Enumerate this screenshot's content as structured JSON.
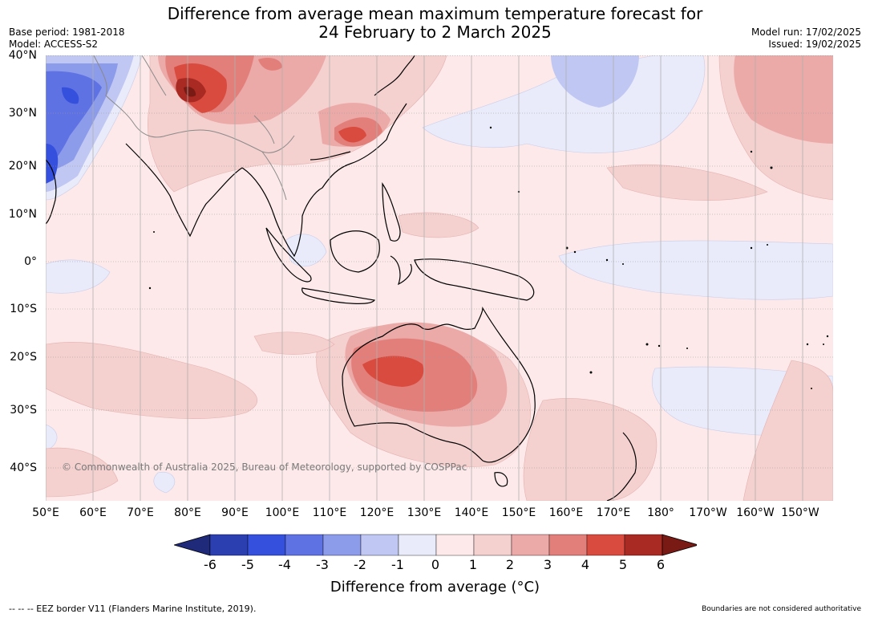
{
  "title_line1": "Difference from average mean maximum temperature forecast for",
  "title_line2": "24 February to 2 March 2025",
  "base_period": "Base period: 1981-2018",
  "model": "Model: ACCESS-S2",
  "model_run": "Model run: 17/02/2025",
  "issued": "Issued: 19/02/2025",
  "copyright": "© Commonwealth of Australia 2025, Bureau of Meteorology, supported by COSPPac",
  "lat_labels": [
    "40°N",
    "30°N",
    "20°N",
    "10°N",
    "0°",
    "10°S",
    "20°S",
    "30°S",
    "40°S"
  ],
  "lon_labels": [
    "50°E",
    "60°E",
    "70°E",
    "80°E",
    "90°E",
    "100°E",
    "110°E",
    "120°E",
    "130°E",
    "140°E",
    "150°E",
    "160°E",
    "170°E",
    "180°",
    "170°W",
    "160°W",
    "150°W"
  ],
  "colorbar": {
    "ticks": [
      "-6",
      "-5",
      "-4",
      "-3",
      "-2",
      "-1",
      "0",
      "1",
      "2",
      "3",
      "4",
      "5",
      "6"
    ],
    "title": "Difference from average (",
    "title_unit": "°C)",
    "colors": [
      "#1f2a7a",
      "#2b3fb0",
      "#3550dc",
      "#5f72e4",
      "#8c9bea",
      "#bfc7f2",
      "#e9ebfb",
      "#fde9e9",
      "#f4d0cf",
      "#eba9a7",
      "#e27f7a",
      "#d94b3f",
      "#a82a22",
      "#7a1a14"
    ]
  },
  "footer_left": "--  --  -- EEZ border V11 (Flanders Marine Institute, 2019).",
  "footer_right": "Boundaries are not considered authoritative"
}
